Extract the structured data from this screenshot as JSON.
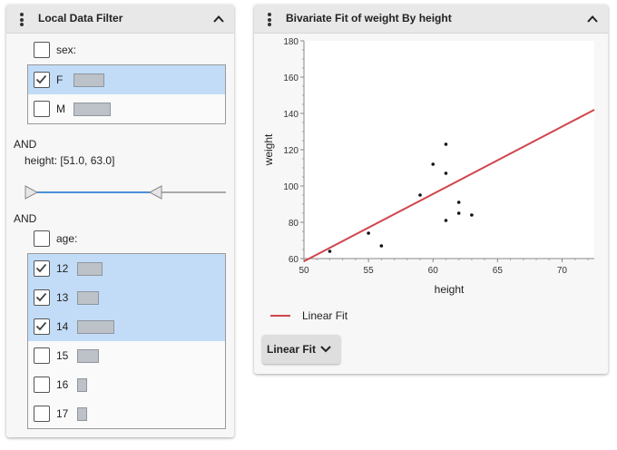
{
  "filter_panel": {
    "title": "Local Data Filter",
    "sex": {
      "label": "sex:",
      "items": [
        {
          "label": "F",
          "checked": true,
          "count_fraction": 1.0
        },
        {
          "label": "M",
          "checked": false,
          "count_fraction": 1.2
        }
      ]
    },
    "and1": "AND",
    "height": {
      "label": "height: [51.0, 63.0]",
      "range_low": 51.0,
      "range_high": 63.0
    },
    "and2": "AND",
    "age": {
      "label": "age:",
      "items": [
        {
          "label": "12",
          "checked": true,
          "count_fraction": 0.67
        },
        {
          "label": "13",
          "checked": true,
          "count_fraction": 0.56
        },
        {
          "label": "14",
          "checked": true,
          "count_fraction": 1.0
        },
        {
          "label": "15",
          "checked": false,
          "count_fraction": 0.56
        },
        {
          "label": "16",
          "checked": false,
          "count_fraction": 0.25
        },
        {
          "label": "17",
          "checked": false,
          "count_fraction": 0.25
        }
      ]
    }
  },
  "fit_panel": {
    "title": "Bivariate Fit of weight By height",
    "legend_label": "Linear Fit",
    "fit_button_label": "Linear Fit"
  },
  "colors": {
    "fit_line": "#d0454c",
    "selected_row": "#c2dcf7",
    "slider_fill": "#4a90d9"
  },
  "chart_data": {
    "type": "scatter",
    "xlabel": "height",
    "ylabel": "weight",
    "xlim": [
      50,
      72.5
    ],
    "ylim": [
      60,
      180
    ],
    "x_ticks": [
      "50",
      "55",
      "60",
      "65",
      "70"
    ],
    "y_ticks": [
      "60",
      "80",
      "100",
      "120",
      "140",
      "160",
      "180"
    ],
    "points": [
      {
        "x": 52,
        "y": 64
      },
      {
        "x": 55,
        "y": 74
      },
      {
        "x": 56,
        "y": 67
      },
      {
        "x": 59,
        "y": 95
      },
      {
        "x": 60,
        "y": 112
      },
      {
        "x": 61,
        "y": 123
      },
      {
        "x": 61,
        "y": 107
      },
      {
        "x": 61,
        "y": 81
      },
      {
        "x": 62,
        "y": 91
      },
      {
        "x": 62,
        "y": 85
      },
      {
        "x": 63,
        "y": 84
      }
    ],
    "fit_line": {
      "name": "Linear Fit",
      "x": [
        50,
        72.5
      ],
      "y": [
        58.5,
        142
      ]
    },
    "grid": false
  }
}
